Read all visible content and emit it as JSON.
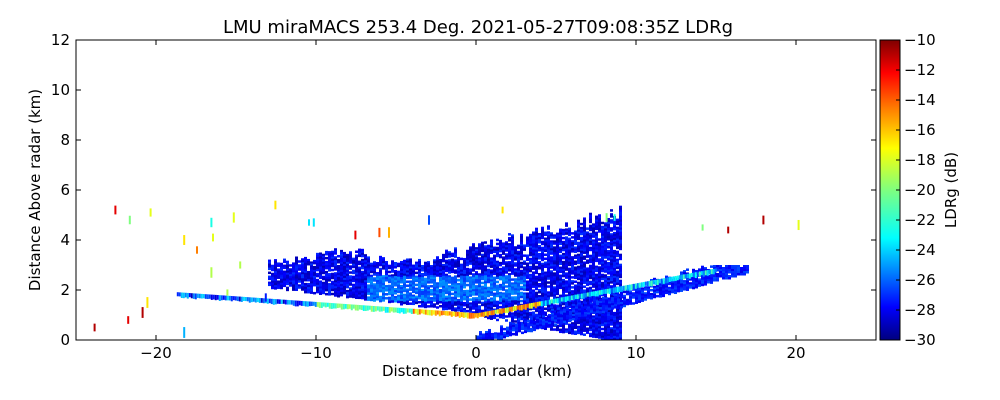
{
  "chart_data": {
    "type": "heatmap",
    "title": "LMU miraMACS 253.4 Deg. 2021-05-27T09:08:35Z  LDRg",
    "xlabel": "Distance from radar (km)",
    "ylabel": "Distance Above radar  (km)",
    "xlim": [
      -25,
      25
    ],
    "ylim": [
      0,
      12
    ],
    "xticks": [
      -20,
      -10,
      0,
      10,
      20
    ],
    "yticks": [
      0,
      2,
      4,
      6,
      8,
      10,
      12
    ],
    "colorbar": {
      "label": "LDRg (dB)",
      "range": [
        -30,
        -10
      ],
      "ticks": [
        -10,
        -12,
        -14,
        -16,
        -18,
        -20,
        -22,
        -24,
        -26,
        -28,
        -30
      ],
      "colormap": [
        "#00007f",
        "#0000ff",
        "#007fff",
        "#00ffff",
        "#7fff7f",
        "#ffff00",
        "#ff7f00",
        "#ff0000",
        "#7f0000"
      ]
    },
    "features": [
      {
        "name": "main-echo",
        "x_range": [
          -13,
          9
        ],
        "top_km": [
          3.6,
          4.9
        ],
        "bottom_km": [
          0,
          1
        ],
        "typical_ldr": -29
      },
      {
        "name": "bright-band",
        "x_range": [
          -18.7,
          15
        ],
        "height_km": [
          0.9,
          1.6
        ],
        "peak_ldr": -14
      },
      {
        "name": "sloped-clutter",
        "x_range": [
          0,
          17
        ],
        "height_km": [
          0,
          3.0
        ],
        "typical_ldr": -28
      }
    ]
  }
}
